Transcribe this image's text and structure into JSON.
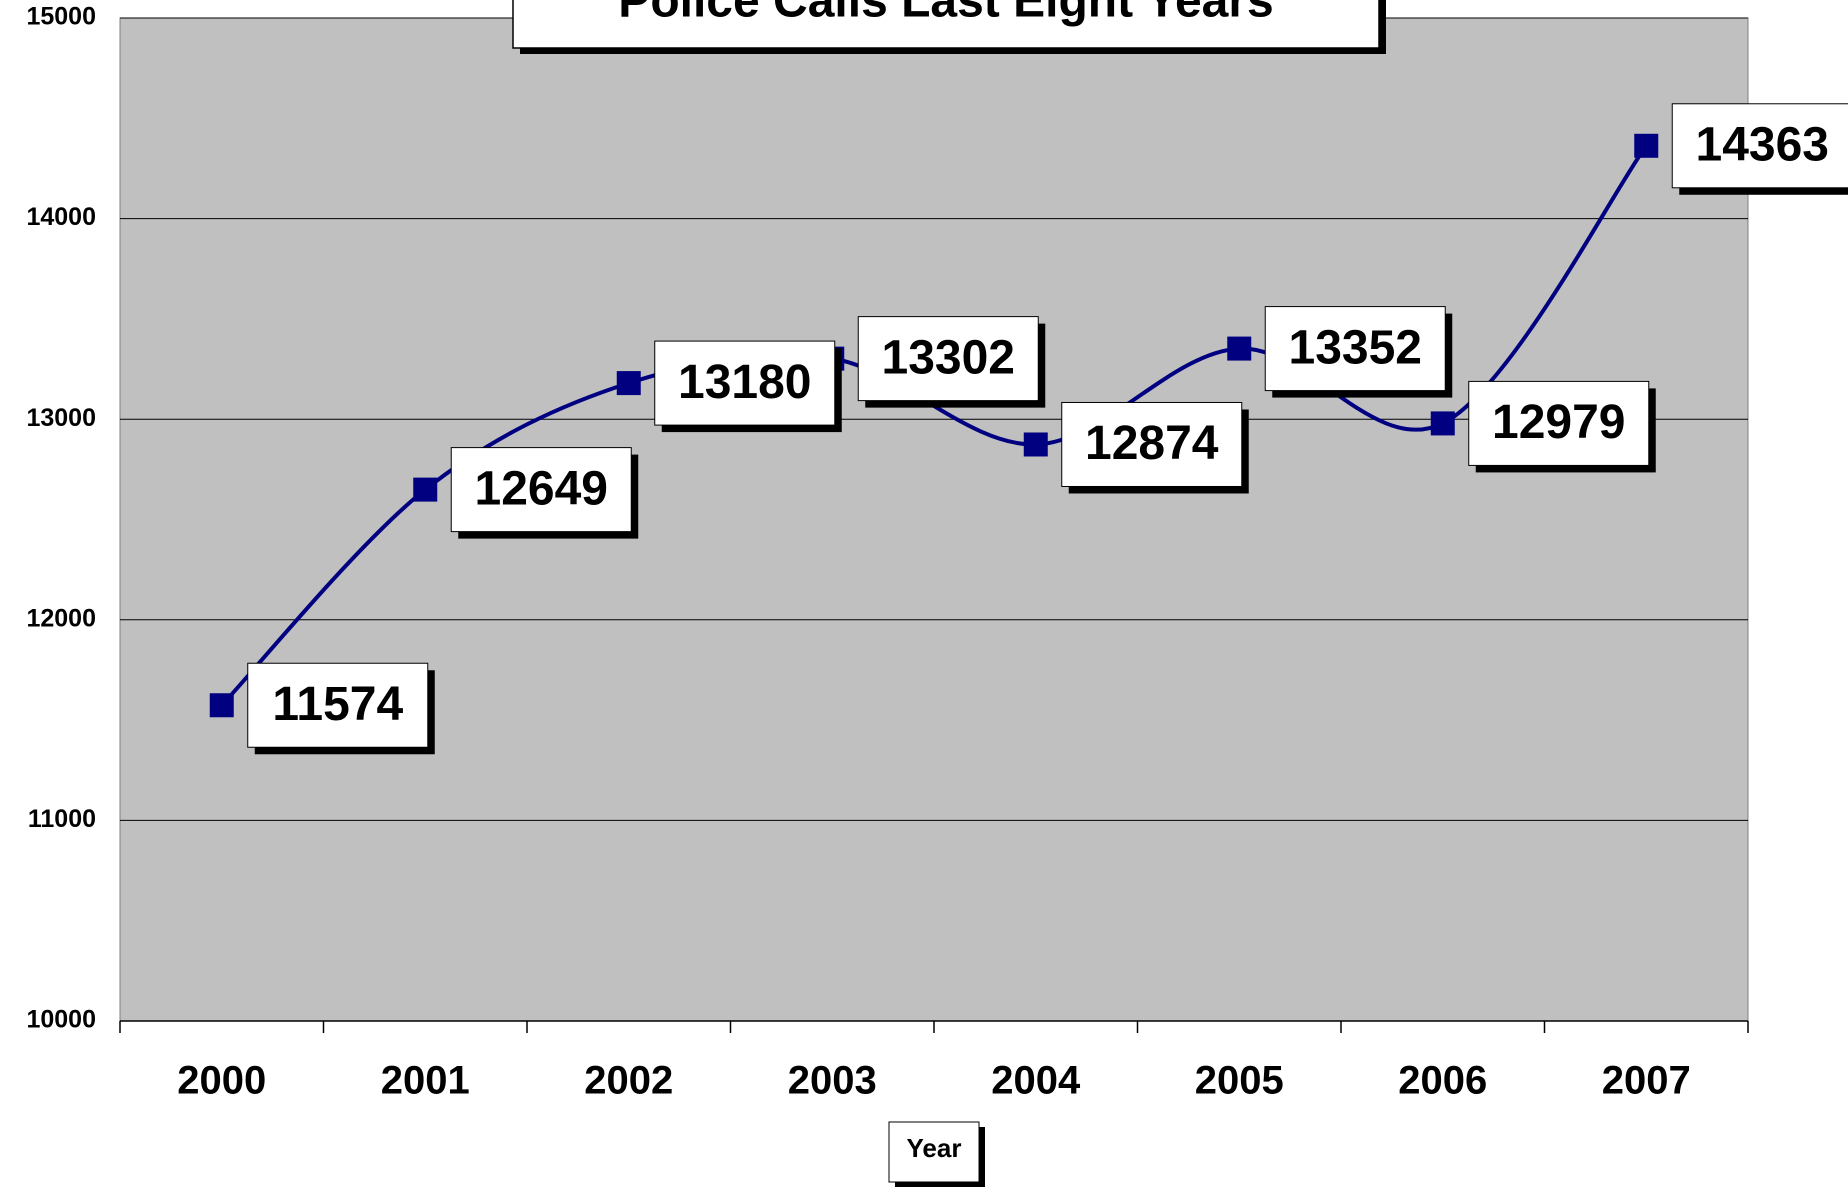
{
  "chart_data": {
    "type": "line",
    "title": "Police Calls Last Eight Years",
    "x_label": "Year",
    "categories": [
      "2000",
      "2001",
      "2002",
      "2003",
      "2004",
      "2005",
      "2006",
      "2007"
    ],
    "series": [
      {
        "name": "Police Calls",
        "color": "#000080",
        "values": [
          11574,
          12649,
          13180,
          13302,
          12874,
          13352,
          12979,
          14363
        ]
      }
    ],
    "ylim": [
      10000,
      15000
    ],
    "yticks": [
      10000,
      11000,
      12000,
      13000,
      14000,
      15000
    ],
    "grid": true,
    "smooth": true
  }
}
